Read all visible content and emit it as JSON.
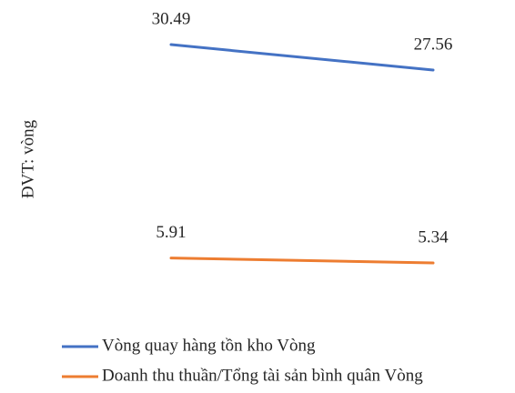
{
  "chart_data": {
    "type": "line",
    "y_label": "ĐVT: vòng",
    "categories": [
      null,
      null
    ],
    "series": [
      {
        "name": "Vòng quay hàng tồn kho Vòng",
        "color": "#4472c4",
        "values": [
          30.49,
          27.56
        ]
      },
      {
        "name": "Doanh thu thuần/Tổng tài sản bình quân Vòng",
        "color": "#ed7d31",
        "values": [
          5.91,
          5.34
        ]
      }
    ],
    "ylim": [
      0,
      35
    ],
    "legend": "bottom"
  }
}
